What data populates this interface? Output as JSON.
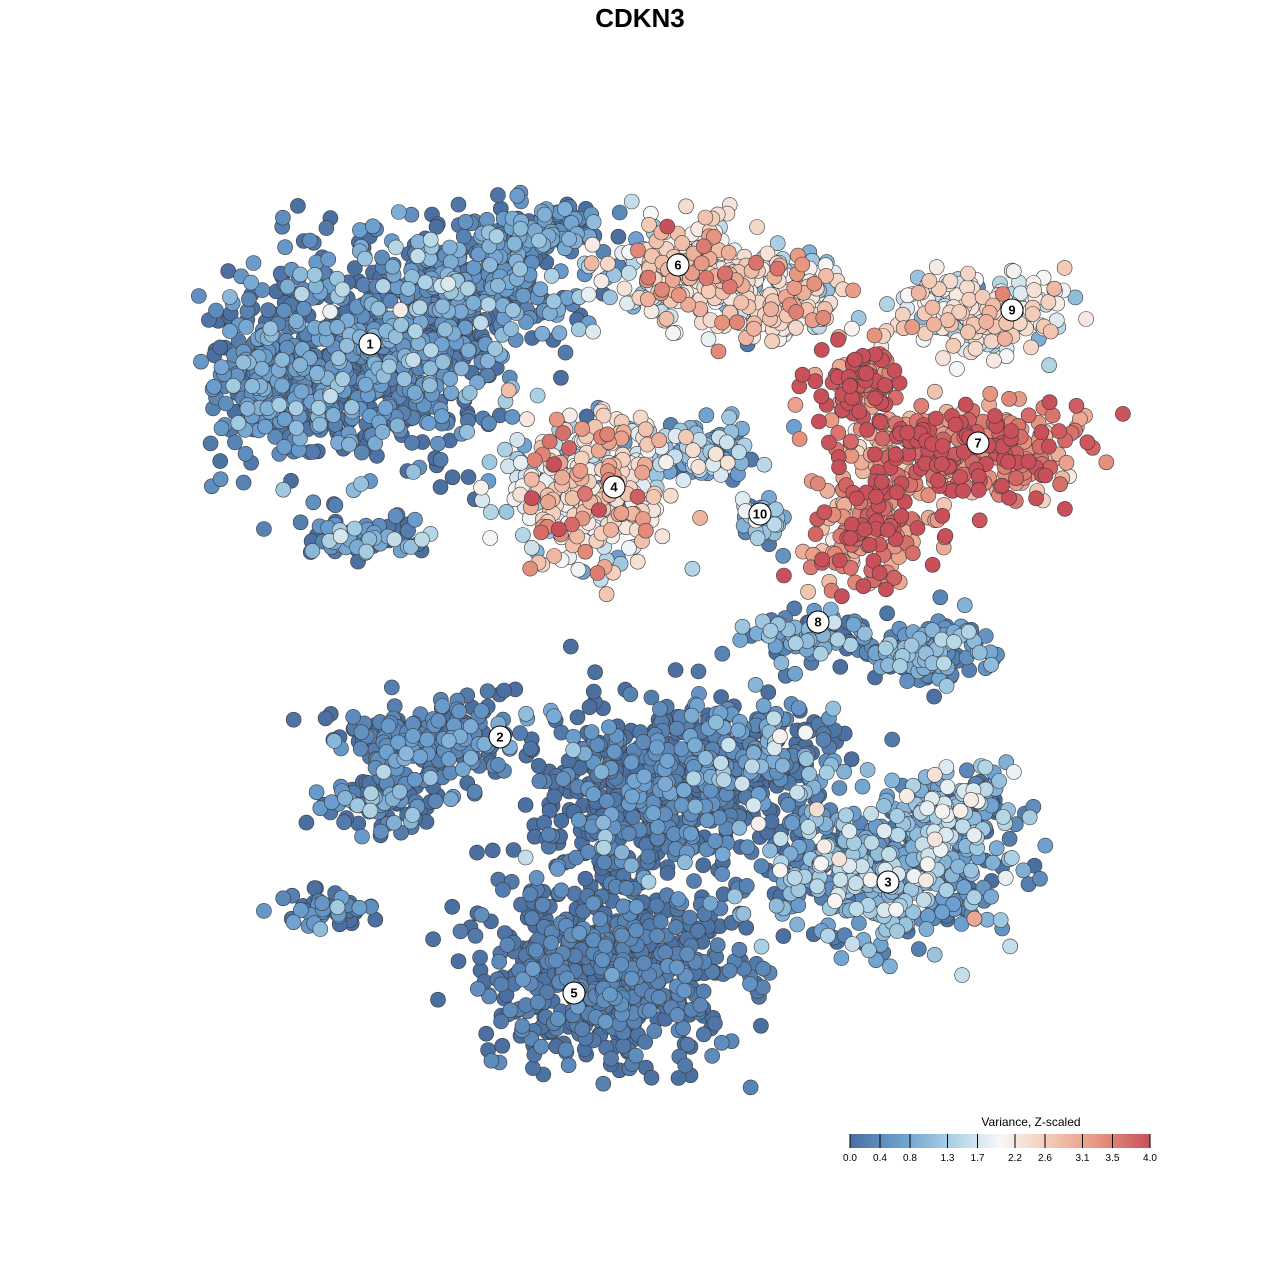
{
  "chart_data": {
    "type": "scatter",
    "title": "CDKN3",
    "xlabel": "",
    "ylabel": "",
    "grid": false,
    "legend": {
      "title": "Variance, Z-scaled",
      "position": "bottom-right",
      "ticks": [
        "0.0",
        "0.4",
        "0.8",
        "1.3",
        "1.7",
        "2.2",
        "2.6",
        "3.1",
        "3.5",
        "4.0"
      ],
      "range": [
        0.0,
        4.0
      ],
      "colors": [
        "#4a6fa0",
        "#6b9fcf",
        "#a8cfe3",
        "#f7f7f7",
        "#f3c9b4",
        "#e6927e",
        "#c9505a"
      ]
    },
    "clusters": [
      {
        "id": "1",
        "label": "1",
        "center": [
          370,
          344
        ],
        "mean_value": 0.3
      },
      {
        "id": "2",
        "label": "2",
        "center": [
          500,
          737
        ],
        "mean_value": 0.2
      },
      {
        "id": "3",
        "label": "3",
        "center": [
          888,
          882
        ],
        "mean_value": 0.7
      },
      {
        "id": "4",
        "label": "4",
        "center": [
          614,
          487
        ],
        "mean_value": 2.2
      },
      {
        "id": "5",
        "label": "5",
        "center": [
          574,
          993
        ],
        "mean_value": 0.1
      },
      {
        "id": "6",
        "label": "6",
        "center": [
          678,
          265
        ],
        "mean_value": 2.1
      },
      {
        "id": "7",
        "label": "7",
        "center": [
          978,
          443
        ],
        "mean_value": 3.5
      },
      {
        "id": "8",
        "label": "8",
        "center": [
          818,
          622
        ],
        "mean_value": 0.5
      },
      {
        "id": "9",
        "label": "9",
        "center": [
          1012,
          310
        ],
        "mean_value": 2.0
      },
      {
        "id": "10",
        "label": "10",
        "center": [
          760,
          514
        ],
        "mean_value": 0.9
      }
    ]
  }
}
